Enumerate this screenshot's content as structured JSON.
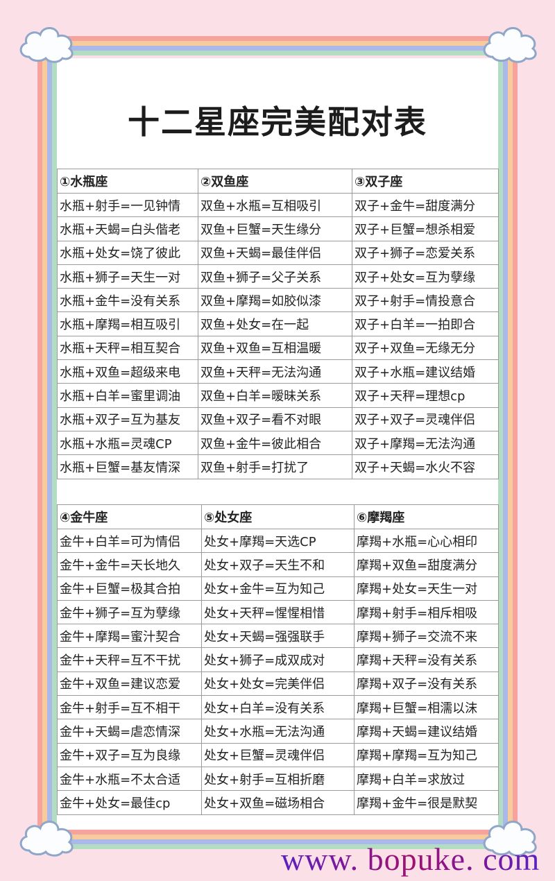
{
  "title": "十二星座完美配对表",
  "colors": {
    "background": "#fbe1e7",
    "rainbow": [
      "#f5a39c",
      "#f8cb9e",
      "#aab9ea",
      "#b3ddc3"
    ],
    "cloud_stroke": "#8fa6c8"
  },
  "tables": [
    {
      "headers": [
        "①水瓶座",
        "②双鱼座",
        "③双子座"
      ],
      "rows": [
        [
          "水瓶+射手=一见钟情",
          "双鱼+水瓶=互相吸引",
          "双子+金牛=甜度满分"
        ],
        [
          "水瓶+天蝎=白头偕老",
          "双鱼+巨蟹=天生缘分",
          "双子+巨蟹=想杀相爱"
        ],
        [
          "水瓶+处女=饶了彼此",
          "双鱼+天蝎=最佳伴侣",
          "双子+狮子=恋爱关系"
        ],
        [
          "水瓶+狮子=天生一对",
          "双鱼+狮子=父子关系",
          "双子+处女=互为孽缘"
        ],
        [
          "水瓶+金牛=没有关系",
          "双鱼+摩羯=如胶似漆",
          "双子+射手=情投意合"
        ],
        [
          "水瓶+摩羯=相互吸引",
          "双鱼+处女=在一起",
          "双子+白羊=一拍即合"
        ],
        [
          "水瓶+天秤=相互契合",
          "双鱼+双鱼=互相温暖",
          "双子+双鱼=无缘无分"
        ],
        [
          "水瓶+双鱼=超级来电",
          "双鱼+天秤=无法沟通",
          "双子+水瓶=建议结婚"
        ],
        [
          "水瓶+白羊=蜜里调油",
          "双鱼+白羊=暧昧关系",
          "双子+天秤=理想cp"
        ],
        [
          "水瓶+双子=互为基友",
          "双鱼+双子=看不对眼",
          "双子+双子=灵魂伴侣"
        ],
        [
          "水瓶+水瓶=灵魂CP",
          "双鱼+金牛=彼此相合",
          "双子+摩羯=无法沟通"
        ],
        [
          "水瓶+巨蟹=基友情深",
          "双鱼+射手=打扰了",
          "双子+天蝎=水火不容"
        ]
      ]
    },
    {
      "headers": [
        "④金牛座",
        "⑤处女座",
        "⑥摩羯座"
      ],
      "rows": [
        [
          "金牛+白羊=可为情侣",
          "处女+摩羯=天选CP",
          "摩羯+水瓶=心心相印"
        ],
        [
          "金牛+金牛=天长地久",
          "处女+双子=天生不和",
          "摩羯+双鱼=甜度满分"
        ],
        [
          "金牛+巨蟹=极其合拍",
          "处女+金牛=互为知己",
          "摩羯+处女=天生一对"
        ],
        [
          "金牛+狮子=互为孽缘",
          "处女+天秤=惺惺相惜",
          "摩羯+射手=相斥相吸"
        ],
        [
          "金牛+摩羯=蜜汁契合",
          "处女+天蝎=强强联手",
          "摩羯+狮子=交流不来"
        ],
        [
          "金牛+天秤=互不干扰",
          "处女+狮子=成双成对",
          "摩羯+天秤=没有关系"
        ],
        [
          "金牛+双鱼=建议恋爱",
          "处女+处女=完美伴侣",
          "摩羯+双子=没有关系"
        ],
        [
          "金牛+射手=互不相干",
          "处女+白羊=没有关系",
          "摩羯+巨蟹=相濡以沫"
        ],
        [
          "金牛+天蝎=虐恋情深",
          "处女+水瓶=无法沟通",
          "摩羯+天蝎=建议结婚"
        ],
        [
          "金牛+双子=互为良缘",
          "处女+巨蟹=灵魂伴侣",
          "摩羯+摩羯=互为知己"
        ],
        [
          "金牛+水瓶=不太合适",
          "处女+射手=互相折磨",
          "摩羯+白羊=求放过"
        ],
        [
          "金牛+处女=最佳cp",
          "处女+双鱼=磁场相合",
          "摩羯+金牛=很是默契"
        ]
      ]
    }
  ],
  "watermark": "www. bopuke. com"
}
